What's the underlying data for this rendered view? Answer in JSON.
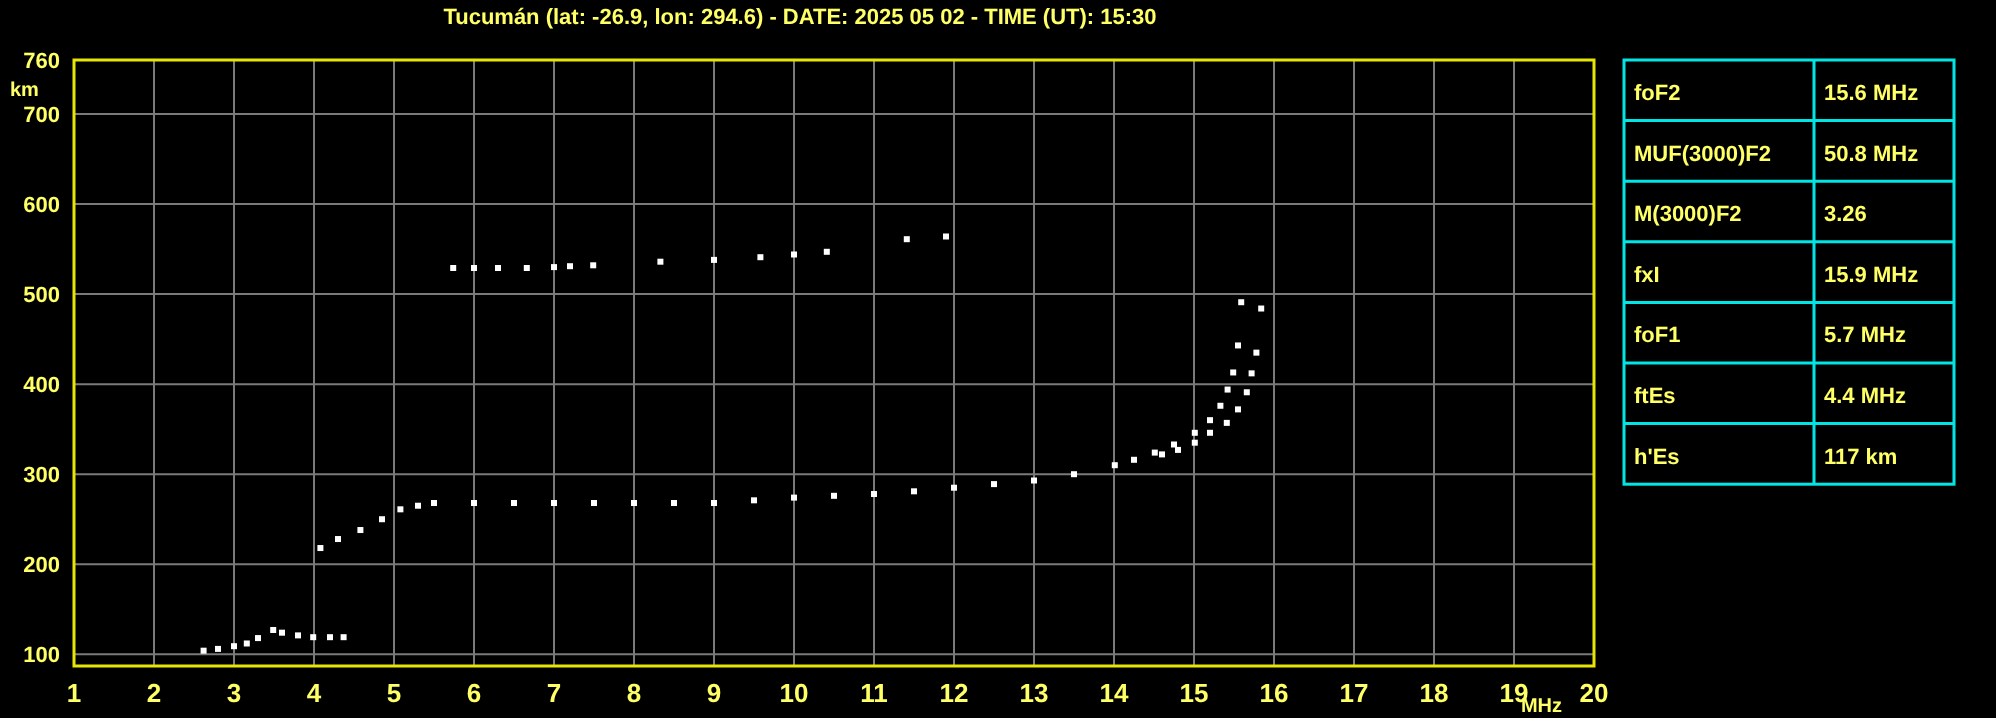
{
  "chart_data": [
    {
      "type": "scatter",
      "title": "Tucumán (lat: -26.9, lon: 294.6) - DATE: 2025 05 02 - TIME (UT): 15:30",
      "xlabel": "MHz",
      "ylabel": "km",
      "xlim": [
        1,
        20
      ],
      "ylim": [
        87,
        760
      ],
      "xticks": [
        1,
        2,
        3,
        4,
        5,
        6,
        7,
        8,
        9,
        10,
        11,
        12,
        13,
        14,
        15,
        16,
        17,
        18,
        19,
        20
      ],
      "yticks": [
        100,
        200,
        300,
        400,
        500,
        600,
        700,
        760
      ],
      "grid": true,
      "marker": "square",
      "series": [
        {
          "color": "#ffffff",
          "x": [
            4.08,
            4.3,
            4.58,
            4.85,
            5.08,
            5.3,
            5.5,
            6,
            6.5,
            7,
            7.5,
            8,
            8.5,
            9,
            9.5,
            10,
            10.5,
            11,
            11.5,
            12,
            12.5,
            13,
            13.5,
            14.01,
            14.25,
            14.51,
            14.75,
            15.01,
            15.2,
            15.33,
            15.42,
            15.49,
            15.55,
            15.59
          ],
          "values": [
            218,
            228,
            238,
            250,
            261,
            265,
            268,
            268,
            268,
            268,
            268,
            268,
            268,
            268,
            271,
            274,
            276,
            278,
            281,
            285,
            289,
            293,
            300,
            310,
            316,
            324,
            333,
            346,
            360,
            376,
            394,
            413,
            443,
            491
          ]
        },
        {
          "color": "#ffffff",
          "x": [
            14.6,
            14.8,
            15.01,
            15.2,
            15.41,
            15.55,
            15.66,
            15.72,
            15.78,
            15.84
          ],
          "values": [
            322,
            327,
            335,
            346,
            357,
            372,
            391,
            412,
            435,
            484
          ]
        },
        {
          "color": "#ffffff",
          "x": [
            2.62,
            2.8,
            3,
            3.16,
            3.3,
            3.49,
            3.6,
            3.8,
            3.99,
            4.2,
            4.37
          ],
          "values": [
            104,
            106,
            109,
            112,
            118,
            127,
            124,
            121,
            119,
            119,
            119
          ]
        },
        {
          "color": "#ffffff",
          "x": [
            5.74,
            6,
            6.3,
            6.66,
            7,
            7.2,
            7.49,
            8.33,
            9,
            9.58,
            10,
            10.41,
            11.41,
            11.9
          ],
          "values": [
            529,
            529,
            529,
            529,
            530,
            531,
            532,
            536,
            538,
            541,
            544,
            547,
            561,
            564
          ]
        }
      ]
    },
    {
      "type": "other",
      "categories": [
        "foF2",
        "MUF(3000)F2",
        "M(3000)F2",
        "fxI",
        "foF1",
        "ftEs",
        "h'Es"
      ],
      "value_labels": [
        "15.6 MHz",
        "50.8 MHz",
        "3.26",
        "15.9 MHz",
        "5.7 MHz",
        "4.4 MHz",
        "117 km"
      ]
    }
  ]
}
